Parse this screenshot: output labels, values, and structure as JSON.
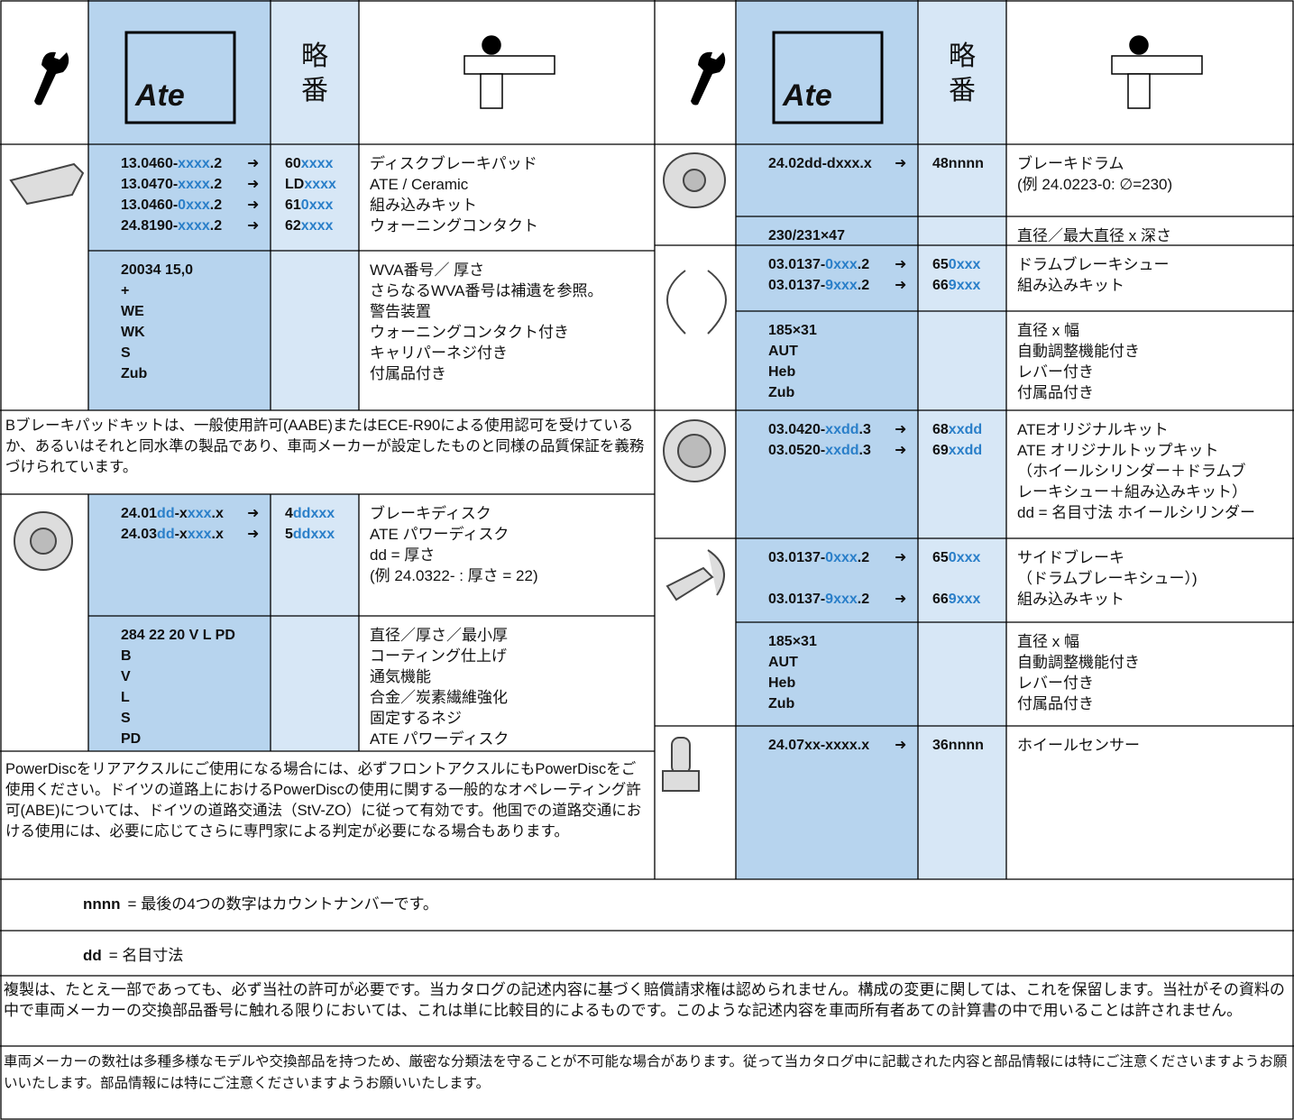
{
  "header": {
    "logo": "Ate",
    "short": "略番"
  },
  "arrow": "➜",
  "left": {
    "pads": {
      "parts": [
        [
          "13.0460-",
          "xxxx",
          ".2"
        ],
        [
          "13.0470-",
          "xxxx",
          ".2"
        ],
        [
          "13.0460-",
          "0xxx",
          ".2"
        ],
        [
          "24.8190-",
          "xxxx",
          ".2"
        ]
      ],
      "codes": [
        [
          "60",
          "xxxx"
        ],
        [
          "LD",
          "xxxx"
        ],
        [
          "61",
          "0xxx"
        ],
        [
          "62",
          "xxxx"
        ]
      ],
      "desc": [
        "ディスクブレーキパッド",
        "ATE / Ceramic",
        "組み込みキット",
        "ウォーニングコンタクト"
      ],
      "specs": [
        "20034 15,0",
        "+",
        "WE",
        "WK",
        "S",
        "Zub"
      ],
      "spec_desc": [
        "WVA番号／ 厚さ",
        "さらなるWVA番号は補遺を参照。",
        "警告装置",
        "ウォーニングコンタクト付き",
        "キャリパーネジ付き",
        "付属品付き"
      ]
    },
    "pads_note": "Bブレーキパッドキットは、一般使用許可(AABE)またはECE-R90による使用認可を受けているか、あるいはそれと同水準の製品であり、車両メーカーが設定したものと同様の品質保証を義務づけられています。",
    "discs": {
      "parts": [
        [
          "24.01",
          "dd",
          "-x",
          "xxx",
          ".x"
        ],
        [
          "24.03",
          "dd",
          "-x",
          "xxx",
          ".x"
        ]
      ],
      "codes": [
        [
          "4",
          "ddxxx"
        ],
        [
          "5",
          "ddxxx"
        ]
      ],
      "desc": [
        "ブレーキディスク",
        "ATE パワーディスク",
        "dd = 厚さ",
        "(例 24.0322- : 厚さ = 22)"
      ],
      "specs": [
        "284 22 20 V L PD",
        "B",
        "V",
        "L",
        "S",
        "PD"
      ],
      "spec_desc": [
        "直径／厚さ／最小厚",
        "コーティング仕上げ",
        "通気機能",
        "合金／炭素繊維強化",
        "固定するネジ",
        "ATE パワーディスク"
      ]
    },
    "discs_note": "PowerDiscをリアアクスルにご使用になる場合には、必ずフロントアクスルにもPowerDiscをご使用ください。ドイツの道路上におけるPowerDiscの使用に関する一般的なオペレーティング許可(ABE)については、ドイツの道路交通法（StV-ZO）に従って有効です。他国での道路交通における使用には、必要に応じてさらに専門家による判定が必要になる場合もあります。"
  },
  "right": {
    "drums": {
      "parts": [
        [
          "24.02dd-dxxx.x"
        ]
      ],
      "codes": [
        [
          "48nnnn"
        ]
      ],
      "desc": [
        "ブレーキドラム",
        "(例 24.0223-0: ∅=230)"
      ],
      "specs": [
        "230/231×47"
      ],
      "spec_desc": [
        "直径／最大直径 x 深さ"
      ]
    },
    "shoes": {
      "parts": [
        [
          "03.0137-",
          "0xxx",
          ".2"
        ],
        [
          "03.0137-",
          "9xxx",
          ".2"
        ]
      ],
      "codes": [
        [
          "65",
          "0xxx"
        ],
        [
          "66",
          "9xxx"
        ]
      ],
      "desc": [
        "ドラムブレーキシュー",
        "組み込みキット"
      ],
      "specs": [
        "185×31",
        "AUT",
        "Heb",
        "Zub"
      ],
      "spec_desc": [
        "直径 x 幅",
        "自動調整機能付き",
        "レバー付き",
        "付属品付き"
      ]
    },
    "kits": {
      "parts": [
        [
          "03.0420-",
          "xxdd",
          ".3"
        ],
        [
          "03.0520-",
          "xxdd",
          ".3"
        ]
      ],
      "codes": [
        [
          "68",
          "xxdd"
        ],
        [
          "69",
          "xxdd"
        ]
      ],
      "desc": [
        "ATEオリジナルキット",
        "ATE オリジナルトップキット",
        "（ホイールシリンダー＋ドラムブ",
        "レーキシュー＋組み込みキット）",
        "dd = 名目寸法 ホイールシリンダー"
      ]
    },
    "handbrake": {
      "parts": [
        [
          "03.0137-",
          "0xxx",
          ".2"
        ],
        [
          "03.0137-",
          "9xxx",
          ".2"
        ]
      ],
      "codes": [
        [
          "65",
          "0xxx"
        ],
        [
          "66",
          "9xxx"
        ]
      ],
      "desc": [
        "サイドブレーキ",
        "（ドラムブレーキシュー）)",
        "組み込みキット"
      ],
      "specs": [
        "185×31",
        "AUT",
        "Heb",
        "Zub"
      ],
      "spec_desc": [
        "直径 x 幅",
        "自動調整機能付き",
        "レバー付き",
        "付属品付き"
      ]
    },
    "sensor": {
      "parts": [
        [
          "24.07xx-xxxx.x"
        ]
      ],
      "codes": [
        [
          "36nnnn"
        ]
      ],
      "desc": [
        "ホイールセンサー"
      ]
    }
  },
  "notes": [
    {
      "key": "nnnn",
      "text": "= 最後の4つの数字はカウントナンバーです。"
    },
    {
      "key": "dd",
      "text": "= 名目寸法"
    }
  ],
  "footer": [
    "複製は、たとえ一部であっても、必ず当社の許可が必要です。当カタログの記述内容に基づく賠償請求権は認められません。構成の変更に関しては、これを保留します。当社がその資料の中で車両メーカーの交換部品番号に触れる限りにおいては、これは単に比較目的によるものです。このような記述内容を車両所有者あての計算書の中で用いることは許されません。",
    "車両メーカーの数社は多種多様なモデルや交換部品を持つため、厳密な分類法を守ることが不可能な場合があります。従って当カタログ中に記載された内容と部品情報には特にご注意くださいますようお願いいたします。部品情報には特にご注意くださいますようお願いいたします。"
  ]
}
